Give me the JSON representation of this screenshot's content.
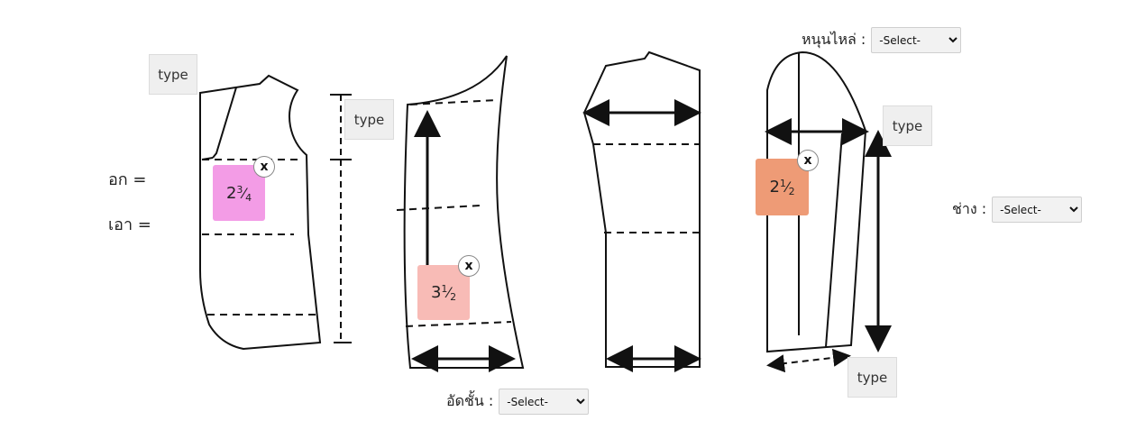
{
  "labels": {
    "chest": "อก =",
    "waist": "เอา ="
  },
  "type_buttons": {
    "front_top": "type",
    "length": "type",
    "sleeve_top": "type",
    "sleeve_bottom": "type"
  },
  "selects": {
    "shoulder": {
      "label": "หนุนไหล่ :",
      "selected": "-Select-"
    },
    "sleeve": {
      "label": "ช่าง :",
      "selected": "-Select-"
    },
    "bottom": {
      "label": "อัดชั้น :",
      "selected": "-Select-"
    }
  },
  "badges": {
    "front": {
      "whole": "2",
      "num": "3",
      "den": "4",
      "color": "#f39ce6"
    },
    "back": {
      "whole": "3",
      "num": "1",
      "den": "2",
      "color": "#f8bbb6"
    },
    "sleeve": {
      "whole": "2",
      "num": "1",
      "den": "2",
      "color": "#ee9b76"
    }
  },
  "close_label": "x",
  "icons": {
    "close": "close-icon"
  }
}
